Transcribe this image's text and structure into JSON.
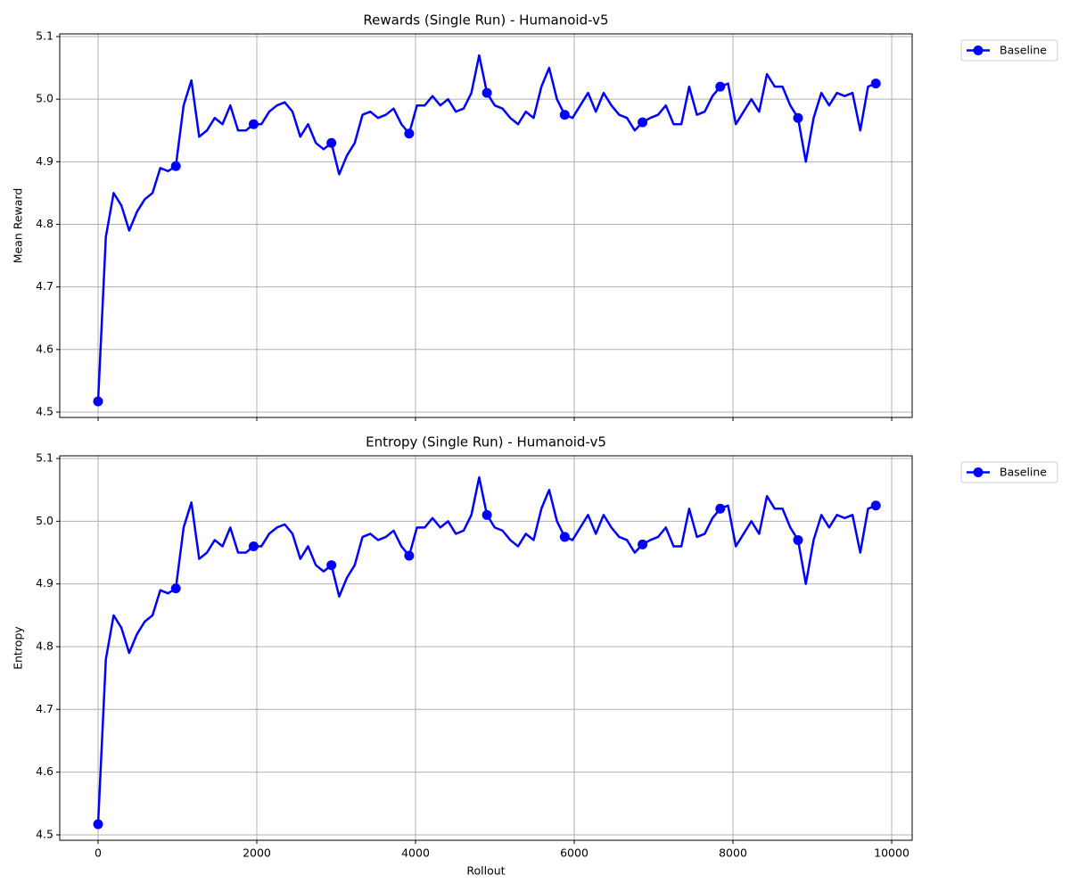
{
  "chart_data": [
    {
      "type": "line",
      "title": "Rewards (Single Run) - Humanoid-v5",
      "ylabel": "Mean Reward",
      "show_xtick_labels": false,
      "x": [
        0,
        98,
        196,
        294,
        392,
        490,
        588,
        686,
        784,
        882,
        980,
        1078,
        1176,
        1274,
        1372,
        1470,
        1568,
        1666,
        1764,
        1862,
        1960,
        2058,
        2156,
        2254,
        2352,
        2450,
        2548,
        2646,
        2744,
        2842,
        2940,
        3038,
        3136,
        3234,
        3332,
        3430,
        3528,
        3626,
        3724,
        3822,
        3920,
        4018,
        4116,
        4214,
        4312,
        4410,
        4508,
        4606,
        4704,
        4802,
        4900,
        4998,
        5096,
        5194,
        5292,
        5390,
        5488,
        5586,
        5684,
        5782,
        5880,
        5978,
        6076,
        6174,
        6272,
        6370,
        6468,
        6566,
        6664,
        6762,
        6860,
        6958,
        7056,
        7154,
        7252,
        7350,
        7448,
        7546,
        7644,
        7742,
        7840,
        7938,
        8036,
        8134,
        8232,
        8330,
        8428,
        8526,
        8624,
        8722,
        8820,
        8918,
        9016,
        9114,
        9212,
        9310,
        9408,
        9506,
        9604,
        9702,
        9800
      ],
      "series": [
        {
          "name": "Baseline",
          "color": "#0000ff",
          "marker_every": 10,
          "values": [
            4.517,
            4.78,
            4.85,
            4.83,
            4.79,
            4.82,
            4.84,
            4.85,
            4.89,
            4.885,
            4.893,
            4.99,
            5.03,
            4.94,
            4.95,
            4.97,
            4.96,
            4.99,
            4.95,
            4.95,
            4.96,
            4.96,
            4.98,
            4.99,
            4.995,
            4.98,
            4.94,
            4.96,
            4.93,
            4.92,
            4.93,
            4.88,
            4.91,
            4.93,
            4.975,
            4.98,
            4.97,
            4.975,
            4.985,
            4.96,
            4.945,
            4.99,
            4.99,
            5.005,
            4.99,
            5.0,
            4.98,
            4.985,
            5.01,
            5.07,
            5.01,
            4.99,
            4.985,
            4.97,
            4.96,
            4.98,
            4.97,
            5.02,
            5.05,
            5.0,
            4.975,
            4.97,
            4.99,
            5.01,
            4.98,
            5.01,
            4.99,
            4.975,
            4.97,
            4.95,
            4.963,
            4.97,
            4.975,
            4.99,
            4.96,
            4.96,
            5.02,
            4.975,
            4.98,
            5.005,
            5.02,
            5.025,
            4.96,
            4.98,
            5.0,
            4.98,
            5.04,
            5.02,
            5.02,
            4.99,
            4.97,
            4.9,
            4.97,
            5.01,
            4.99,
            5.01,
            5.005,
            5.01,
            4.95,
            5.02,
            5.025
          ]
        }
      ],
      "xlim": [
        -483,
        10258
      ],
      "xticks": [
        0,
        2000,
        4000,
        6000,
        8000,
        10000
      ],
      "ylim": [
        4.4914,
        5.1043
      ],
      "yticks": [
        4.5,
        4.6,
        4.7,
        4.8,
        4.9,
        {
          "value": 5,
          "label": "5.0"
        },
        5.1
      ],
      "grid": true,
      "legend": "outside right"
    },
    {
      "type": "line",
      "title": "Entropy (Single Run) - Humanoid-v5",
      "ylabel": "Entropy",
      "xlabel": "Rollout",
      "show_xtick_labels": true,
      "x": [
        0,
        98,
        196,
        294,
        392,
        490,
        588,
        686,
        784,
        882,
        980,
        1078,
        1176,
        1274,
        1372,
        1470,
        1568,
        1666,
        1764,
        1862,
        1960,
        2058,
        2156,
        2254,
        2352,
        2450,
        2548,
        2646,
        2744,
        2842,
        2940,
        3038,
        3136,
        3234,
        3332,
        3430,
        3528,
        3626,
        3724,
        3822,
        3920,
        4018,
        4116,
        4214,
        4312,
        4410,
        4508,
        4606,
        4704,
        4802,
        4900,
        4998,
        5096,
        5194,
        5292,
        5390,
        5488,
        5586,
        5684,
        5782,
        5880,
        5978,
        6076,
        6174,
        6272,
        6370,
        6468,
        6566,
        6664,
        6762,
        6860,
        6958,
        7056,
        7154,
        7252,
        7350,
        7448,
        7546,
        7644,
        7742,
        7840,
        7938,
        8036,
        8134,
        8232,
        8330,
        8428,
        8526,
        8624,
        8722,
        8820,
        8918,
        9016,
        9114,
        9212,
        9310,
        9408,
        9506,
        9604,
        9702,
        9800
      ],
      "series": [
        {
          "name": "Baseline",
          "color": "#0000ff",
          "marker_every": 10,
          "values": [
            4.517,
            4.78,
            4.85,
            4.83,
            4.79,
            4.82,
            4.84,
            4.85,
            4.89,
            4.885,
            4.893,
            4.99,
            5.03,
            4.94,
            4.95,
            4.97,
            4.96,
            4.99,
            4.95,
            4.95,
            4.96,
            4.96,
            4.98,
            4.99,
            4.995,
            4.98,
            4.94,
            4.96,
            4.93,
            4.92,
            4.93,
            4.88,
            4.91,
            4.93,
            4.975,
            4.98,
            4.97,
            4.975,
            4.985,
            4.96,
            4.945,
            4.99,
            4.99,
            5.005,
            4.99,
            5.0,
            4.98,
            4.985,
            5.01,
            5.07,
            5.01,
            4.99,
            4.985,
            4.97,
            4.96,
            4.98,
            4.97,
            5.02,
            5.05,
            5.0,
            4.975,
            4.97,
            4.99,
            5.01,
            4.98,
            5.01,
            4.99,
            4.975,
            4.97,
            4.95,
            4.963,
            4.97,
            4.975,
            4.99,
            4.96,
            4.96,
            5.02,
            4.975,
            4.98,
            5.005,
            5.02,
            5.025,
            4.96,
            4.98,
            5.0,
            4.98,
            5.04,
            5.02,
            5.02,
            4.99,
            4.97,
            4.9,
            4.97,
            5.01,
            4.99,
            5.01,
            5.005,
            5.01,
            4.95,
            5.02,
            5.025
          ]
        }
      ],
      "xlim": [
        -483,
        10258
      ],
      "xticks": [
        0,
        2000,
        4000,
        6000,
        8000,
        10000
      ],
      "ylim": [
        4.4914,
        5.1043
      ],
      "yticks": [
        4.5,
        4.6,
        4.7,
        4.8,
        4.9,
        {
          "value": 5,
          "label": "5.0"
        },
        5.1
      ],
      "grid": true,
      "legend": "outside right"
    }
  ]
}
